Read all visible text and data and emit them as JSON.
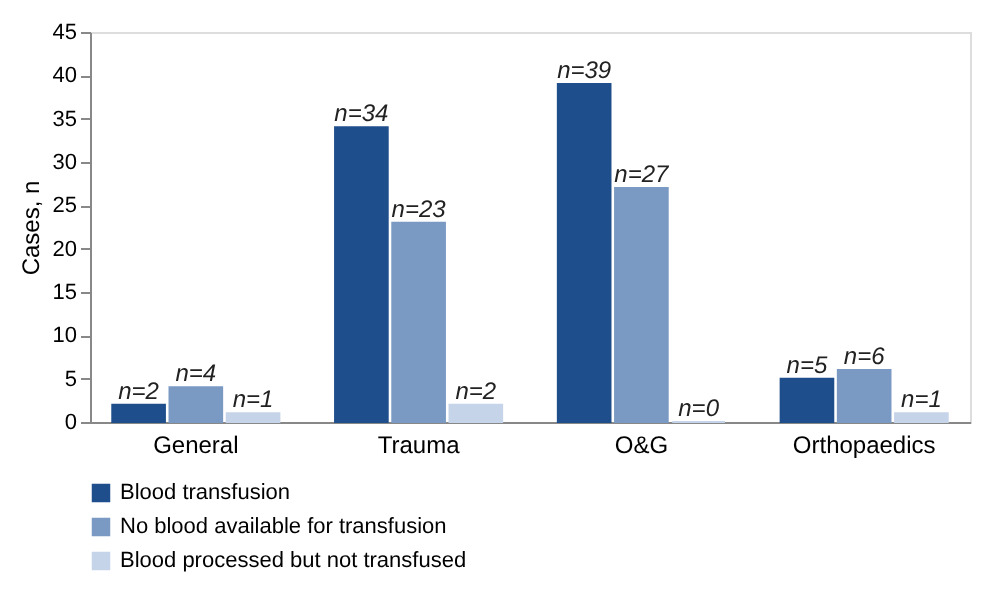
{
  "chart_data": {
    "type": "bar",
    "ylabel": "Cases, n",
    "categories": [
      "General",
      "Trauma",
      "O&G",
      "Orthopaedics"
    ],
    "series": [
      {
        "name": "Blood transfusion",
        "color": "#1f4e8c",
        "values": [
          2,
          34,
          39,
          5
        ],
        "value_labels": [
          "n=2",
          "n=34",
          "n=39",
          "n=5"
        ]
      },
      {
        "name": "No blood available for transfusion",
        "color": "#7a99c3",
        "values": [
          4,
          23,
          27,
          6
        ],
        "value_labels": [
          "n=4",
          "n=23",
          "n=27",
          "n=6"
        ]
      },
      {
        "name": "Blood processed but not transfused",
        "color": "#c6d4e9",
        "values": [
          1,
          2,
          0,
          1
        ],
        "value_labels": [
          "n=1",
          "n=2",
          "n=0",
          "n=1"
        ]
      }
    ],
    "ylim": [
      0,
      45
    ],
    "yticks": [
      0,
      5,
      10,
      15,
      20,
      25,
      30,
      35,
      40,
      45
    ],
    "grid": false,
    "legend": "bottom left"
  }
}
